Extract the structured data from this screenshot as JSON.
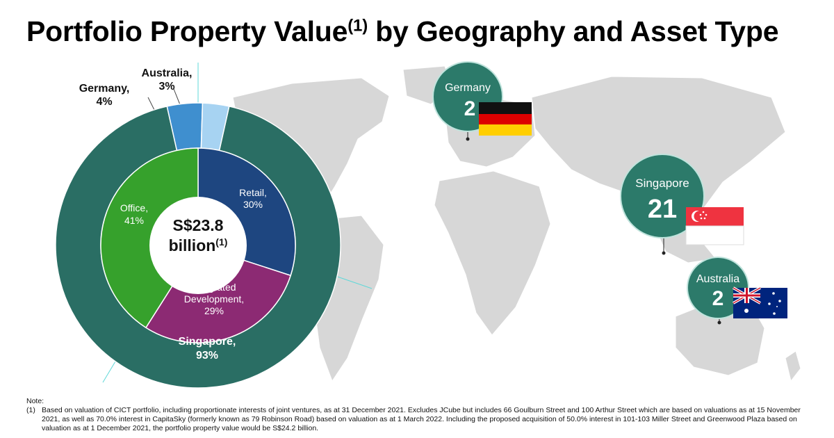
{
  "title": {
    "main": "Portfolio Property Value",
    "superscript": "(1)",
    "rest": " by Geography and Asset Type"
  },
  "chart_data": [
    {
      "type": "pie",
      "variant": "donut",
      "ring": "outer",
      "categories": [
        "Singapore",
        "Germany",
        "Australia"
      ],
      "values": [
        93,
        4,
        3
      ],
      "labels": [
        "Singapore,",
        "Germany,",
        "Australia,"
      ],
      "value_labels": [
        "93%",
        "4%",
        "3%"
      ],
      "colors": [
        "#2a6e64",
        "#3f8fcf",
        "#a7d3f2"
      ]
    },
    {
      "type": "pie",
      "variant": "donut",
      "ring": "inner",
      "categories": [
        "Retail",
        "Integrated Development",
        "Office"
      ],
      "values": [
        30,
        29,
        41
      ],
      "labels": [
        "Retail,",
        "Integrated Development,",
        "Office,"
      ],
      "value_labels": [
        "30%",
        "29%",
        "41%"
      ],
      "colors": [
        "#1e4680",
        "#8c2a73",
        "#36a12c"
      ],
      "center_label": {
        "line1": "S$23.8",
        "line2": "billion",
        "superscript": "(1)"
      }
    }
  ],
  "map": {
    "markers": [
      {
        "country": "Germany",
        "count": "2",
        "flag": "germany-flag"
      },
      {
        "country": "Singapore",
        "count": "21",
        "flag": "singapore-flag"
      },
      {
        "country": "Australia",
        "count": "2",
        "flag": "australia-flag"
      }
    ],
    "bubble_color": "#2c7a6a"
  },
  "note": {
    "heading": "Note:",
    "marker": "(1)",
    "text": "Based on valuation of CICT portfolio, including proportionate interests of joint ventures, as at 31 December 2021. Excludes JCube but includes 66 Goulburn Street and 100 Arthur Street which are based on valuations as at 15 November 2021, as well as 70.0% interest in CapitaSky (formerly known as 79 Robinson Road) based on valuation as at 1 March 2022. Including the proposed acquisition of 50.0% interest in 101-103 Miller Street and Greenwood Plaza based on valuation as at 1 December 2021, the portfolio property value would be S$24.2 billion."
  }
}
